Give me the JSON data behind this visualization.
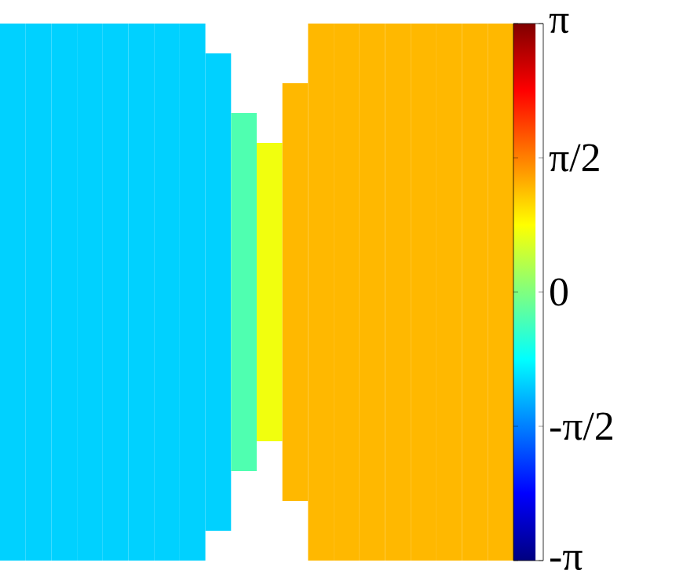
{
  "chart_data": {
    "type": "heatmap",
    "categories": [
      null,
      null,
      null,
      null,
      null,
      null,
      null,
      null,
      null,
      null,
      null,
      null,
      null,
      null,
      null,
      null,
      null,
      null,
      null,
      null
    ],
    "y_categories": [
      null,
      null,
      null,
      null,
      null,
      null,
      null,
      null,
      null,
      null,
      null,
      null,
      null,
      null,
      null,
      null,
      null,
      null
    ],
    "cells": [
      [
        -1.07,
        -1.07,
        -1.07,
        -1.07,
        -1.07,
        -1.07,
        -1.07,
        -1.07,
        null,
        null,
        null,
        null,
        1.22,
        1.22,
        1.22,
        1.22,
        1.22,
        1.22,
        1.22,
        1.22
      ],
      [
        -1.07,
        -1.07,
        -1.07,
        -1.07,
        -1.07,
        -1.07,
        -1.07,
        -1.07,
        -1.07,
        null,
        null,
        null,
        1.22,
        1.22,
        1.22,
        1.22,
        1.22,
        1.22,
        1.22,
        1.22
      ],
      [
        -1.07,
        -1.07,
        -1.07,
        -1.07,
        -1.07,
        -1.07,
        -1.07,
        -1.07,
        -1.07,
        null,
        null,
        1.22,
        1.22,
        1.22,
        1.22,
        1.22,
        1.22,
        1.22,
        1.22,
        1.22
      ],
      [
        -1.07,
        -1.07,
        -1.07,
        -1.07,
        -1.07,
        -1.07,
        -1.07,
        -1.07,
        -1.07,
        -0.3,
        null,
        1.22,
        1.22,
        1.22,
        1.22,
        1.22,
        1.22,
        1.22,
        1.22,
        1.22
      ],
      [
        -1.07,
        -1.07,
        -1.07,
        -1.07,
        -1.07,
        -1.07,
        -1.07,
        -1.07,
        -1.07,
        -0.3,
        0.7,
        1.22,
        1.22,
        1.22,
        1.22,
        1.22,
        1.22,
        1.22,
        1.22,
        1.22
      ],
      [
        -1.07,
        -1.07,
        -1.07,
        -1.07,
        -1.07,
        -1.07,
        -1.07,
        -1.07,
        -1.07,
        -0.3,
        0.7,
        1.22,
        1.22,
        1.22,
        1.22,
        1.22,
        1.22,
        1.22,
        1.22,
        1.22
      ],
      [
        -1.07,
        -1.07,
        -1.07,
        -1.07,
        -1.07,
        -1.07,
        -1.07,
        -1.07,
        -1.07,
        -0.3,
        0.7,
        1.22,
        1.22,
        1.22,
        1.22,
        1.22,
        1.22,
        1.22,
        1.22,
        1.22
      ],
      [
        -1.07,
        -1.07,
        -1.07,
        -1.07,
        -1.07,
        -1.07,
        -1.07,
        -1.07,
        -1.07,
        -0.3,
        0.7,
        1.22,
        1.22,
        1.22,
        1.22,
        1.22,
        1.22,
        1.22,
        1.22,
        1.22
      ],
      [
        -1.07,
        -1.07,
        -1.07,
        -1.07,
        -1.07,
        -1.07,
        -1.07,
        -1.07,
        -1.07,
        -0.3,
        0.7,
        1.22,
        1.22,
        1.22,
        1.22,
        1.22,
        1.22,
        1.22,
        1.22,
        1.22
      ],
      [
        -1.07,
        -1.07,
        -1.07,
        -1.07,
        -1.07,
        -1.07,
        -1.07,
        -1.07,
        -1.07,
        -0.3,
        0.7,
        1.22,
        1.22,
        1.22,
        1.22,
        1.22,
        1.22,
        1.22,
        1.22,
        1.22
      ],
      [
        -1.07,
        -1.07,
        -1.07,
        -1.07,
        -1.07,
        -1.07,
        -1.07,
        -1.07,
        -1.07,
        -0.3,
        0.7,
        1.22,
        1.22,
        1.22,
        1.22,
        1.22,
        1.22,
        1.22,
        1.22,
        1.22
      ],
      [
        -1.07,
        -1.07,
        -1.07,
        -1.07,
        -1.07,
        -1.07,
        -1.07,
        -1.07,
        -1.07,
        -0.3,
        0.7,
        1.22,
        1.22,
        1.22,
        1.22,
        1.22,
        1.22,
        1.22,
        1.22,
        1.22
      ],
      [
        -1.07,
        -1.07,
        -1.07,
        -1.07,
        -1.07,
        -1.07,
        -1.07,
        -1.07,
        -1.07,
        -0.3,
        0.7,
        1.22,
        1.22,
        1.22,
        1.22,
        1.22,
        1.22,
        1.22,
        1.22,
        1.22
      ],
      [
        -1.07,
        -1.07,
        -1.07,
        -1.07,
        -1.07,
        -1.07,
        -1.07,
        -1.07,
        -1.07,
        -0.3,
        0.7,
        1.22,
        1.22,
        1.22,
        1.22,
        1.22,
        1.22,
        1.22,
        1.22,
        1.22
      ],
      [
        -1.07,
        -1.07,
        -1.07,
        -1.07,
        -1.07,
        -1.07,
        -1.07,
        -1.07,
        -1.07,
        -0.3,
        null,
        1.22,
        1.22,
        1.22,
        1.22,
        1.22,
        1.22,
        1.22,
        1.22,
        1.22
      ],
      [
        -1.07,
        -1.07,
        -1.07,
        -1.07,
        -1.07,
        -1.07,
        -1.07,
        -1.07,
        -1.07,
        null,
        null,
        1.22,
        1.22,
        1.22,
        1.22,
        1.22,
        1.22,
        1.22,
        1.22,
        1.22
      ],
      [
        -1.07,
        -1.07,
        -1.07,
        -1.07,
        -1.07,
        -1.07,
        -1.07,
        -1.07,
        -1.07,
        null,
        null,
        null,
        1.22,
        1.22,
        1.22,
        1.22,
        1.22,
        1.22,
        1.22,
        1.22
      ],
      [
        -1.07,
        -1.07,
        -1.07,
        -1.07,
        -1.07,
        -1.07,
        -1.07,
        -1.07,
        null,
        null,
        null,
        null,
        1.22,
        1.22,
        1.22,
        1.22,
        1.22,
        1.22,
        1.22,
        1.22
      ]
    ],
    "clim": [
      -3.1416,
      3.1416
    ],
    "cticks": [
      {
        "value": -3.1416,
        "label": "-π"
      },
      {
        "value": -1.5708,
        "label": "-π/2"
      },
      0,
      {
        "value": 1.5708,
        "label": "π/2"
      },
      {
        "value": 3.1416,
        "label": "π"
      }
    ]
  }
}
